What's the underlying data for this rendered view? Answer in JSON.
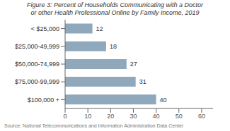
{
  "chart_data": {
    "type": "bar",
    "orientation": "horizontal",
    "title": "Figure 3: Percent of Households Communicating with a Doctor",
    "subtitle": "or other Health Professional Online by Family Income, 2019",
    "annotations": [
      "Source: National Telecommunications and Information Administration Data Center"
    ],
    "categories": [
      "$100,000 +",
      "$75,000-99,999",
      "$50,000-74,999",
      "$25,000-49,999",
      "< $25,000"
    ],
    "values": [
      40,
      31,
      27,
      18,
      12
    ],
    "color": "#8fa8bc",
    "xlim": [
      0,
      65
    ],
    "xticks": [
      0,
      10,
      20,
      30,
      40,
      50,
      60
    ],
    "grid": false,
    "data_labels": true
  }
}
